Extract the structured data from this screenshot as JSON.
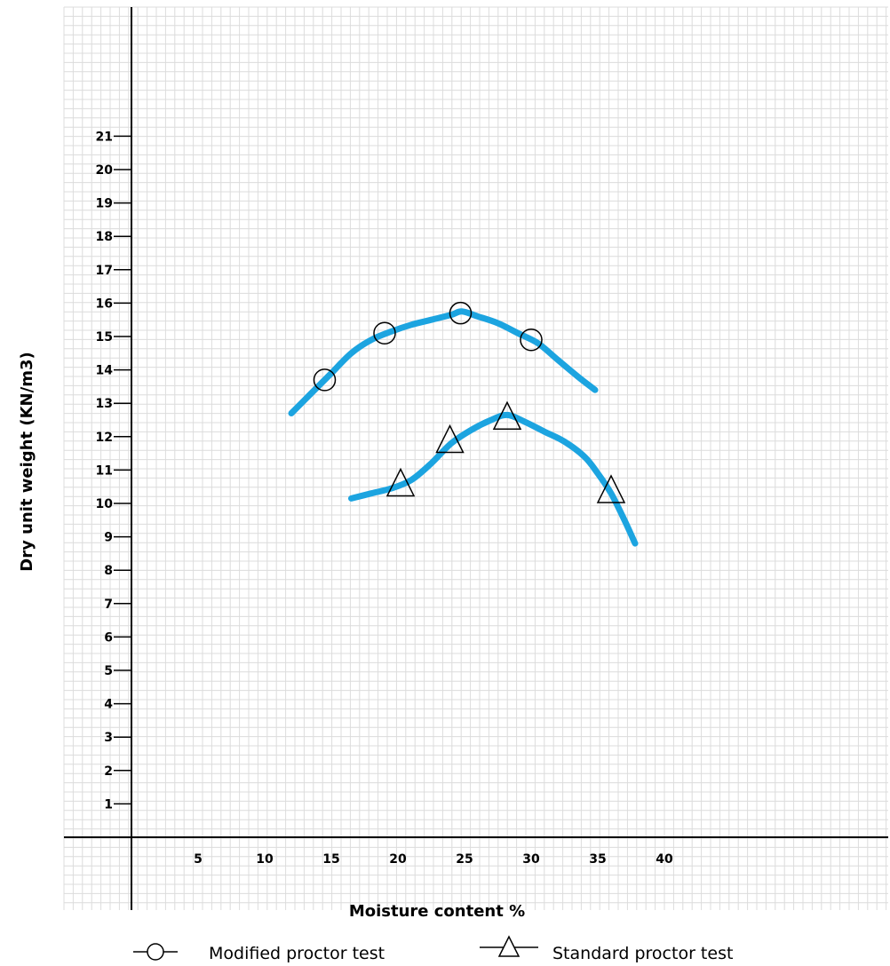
{
  "chart_data": {
    "type": "line",
    "title": "",
    "xlabel": "Moisture content %",
    "ylabel": "Dry unit weight (KN/m3)",
    "x_ticks": [
      5,
      10,
      15,
      20,
      25,
      30,
      35,
      40
    ],
    "y_ticks": [
      1,
      2,
      3,
      4,
      5,
      6,
      7,
      8,
      9,
      10,
      11,
      12,
      13,
      14,
      15,
      16,
      17,
      18,
      19,
      20,
      21
    ],
    "xlim": [
      -5,
      56
    ],
    "ylim": [
      -1,
      25
    ],
    "grid": true,
    "line_color": "#1ca4e0",
    "legend_position": "bottom",
    "series": [
      {
        "name": "Modified proctor test",
        "marker": "circle",
        "points": [
          [
            14.5,
            13.7
          ],
          [
            19,
            15.1
          ],
          [
            24.7,
            15.7
          ],
          [
            30,
            14.9
          ]
        ],
        "curve": [
          [
            12,
            12.7
          ],
          [
            13.5,
            13.3
          ],
          [
            15,
            13.9
          ],
          [
            16.5,
            14.5
          ],
          [
            18,
            14.9
          ],
          [
            19.5,
            15.15
          ],
          [
            21,
            15.35
          ],
          [
            22.5,
            15.5
          ],
          [
            24,
            15.65
          ],
          [
            24.8,
            15.75
          ],
          [
            26,
            15.6
          ],
          [
            27.5,
            15.4
          ],
          [
            29,
            15.1
          ],
          [
            30.5,
            14.8
          ],
          [
            32,
            14.3
          ],
          [
            33.5,
            13.8
          ],
          [
            34.8,
            13.4
          ]
        ]
      },
      {
        "name": "Standard proctor test",
        "marker": "triangle",
        "points": [
          [
            20.2,
            10.6
          ],
          [
            23.9,
            11.9
          ],
          [
            28.2,
            12.6
          ],
          [
            36,
            10.4
          ]
        ],
        "curve": [
          [
            16.5,
            10.15
          ],
          [
            18,
            10.3
          ],
          [
            19.5,
            10.45
          ],
          [
            21,
            10.7
          ],
          [
            22.5,
            11.2
          ],
          [
            24,
            11.8
          ],
          [
            25.5,
            12.2
          ],
          [
            27,
            12.5
          ],
          [
            28.2,
            12.65
          ],
          [
            29.5,
            12.45
          ],
          [
            31,
            12.15
          ],
          [
            32.5,
            11.85
          ],
          [
            34,
            11.4
          ],
          [
            35,
            10.9
          ],
          [
            36,
            10.3
          ],
          [
            37,
            9.5
          ],
          [
            37.8,
            8.8
          ]
        ]
      }
    ]
  }
}
